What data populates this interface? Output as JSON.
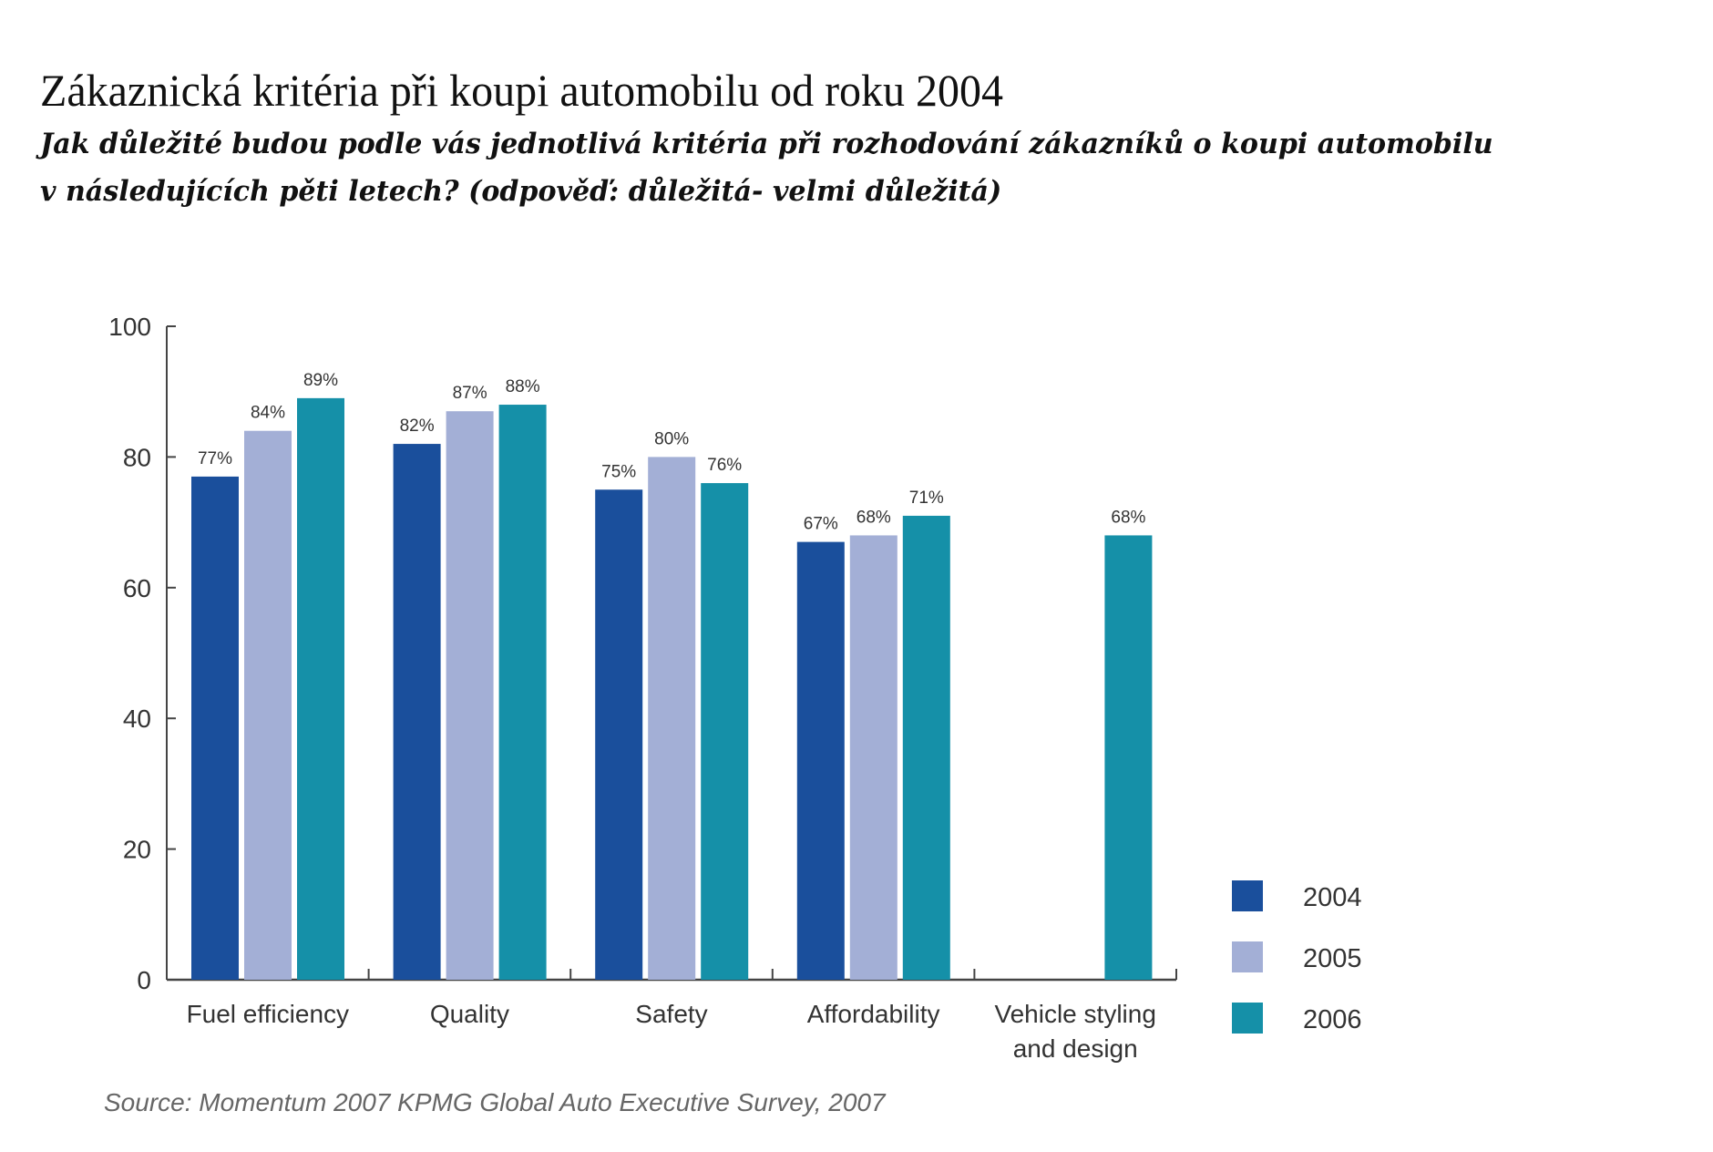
{
  "chart_data": {
    "type": "bar",
    "title": "Zákaznická kritéria při koupi automobilu od roku 2004",
    "subtitle_lines": [
      "Jak důležité budou podle vás jednotlivá kritéria při rozhodování zákazníků o koupi automobilu",
      "v následujících pěti letech? (odpověď: důležitá- velmi důležitá)"
    ],
    "categories": [
      [
        "Fuel efficiency"
      ],
      [
        "Quality"
      ],
      [
        "Safety"
      ],
      [
        "Affordability"
      ],
      [
        "Vehicle styling",
        "and design"
      ]
    ],
    "series": [
      {
        "name": "2004",
        "color": "#1a4f9c",
        "values": [
          77,
          82,
          75,
          67,
          null
        ]
      },
      {
        "name": "2005",
        "color": "#a3afd6",
        "values": [
          84,
          87,
          80,
          68,
          null
        ]
      },
      {
        "name": "2006",
        "color": "#1590a8",
        "values": [
          89,
          88,
          76,
          71,
          68
        ]
      }
    ],
    "data_label_suffix": "%",
    "ylim": [
      0,
      100
    ],
    "yticks": [
      0,
      20,
      40,
      60,
      80,
      100
    ],
    "xlabel": "",
    "ylabel": "",
    "grid": false,
    "legend_position": "bottom-right",
    "source": "Source: Momentum 2007 KPMG Global Auto Executive Survey, 2007"
  }
}
